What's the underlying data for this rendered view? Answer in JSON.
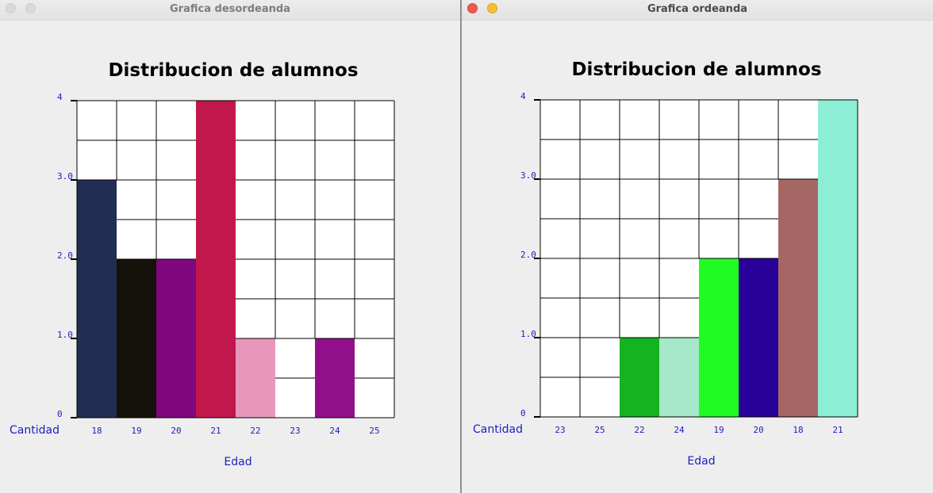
{
  "windows": [
    {
      "title": "Grafica desordeanda",
      "active": false,
      "chart_data": {
        "type": "bar",
        "title": "Distribucion de alumnos",
        "xlabel": "Edad",
        "ylabel": "Cantidad",
        "ylim": [
          0,
          4
        ],
        "y_ticks": [
          "0",
          "1.0",
          "2.0",
          "3.0",
          "4"
        ],
        "grid": true,
        "categories": [
          "18",
          "19",
          "20",
          "21",
          "22",
          "23",
          "24",
          "25"
        ],
        "values": [
          3,
          2,
          2,
          4,
          1,
          0,
          1,
          0
        ],
        "colors": [
          "#212e52",
          "#15120b",
          "#80077e",
          "#c2174c",
          "#e896ba",
          "#ffffff",
          "#920f8b",
          "#ffffff"
        ]
      }
    },
    {
      "title": "Grafica ordeanda",
      "active": true,
      "chart_data": {
        "type": "bar",
        "title": "Distribucion de alumnos",
        "xlabel": "Edad",
        "ylabel": "Cantidad",
        "ylim": [
          0,
          4
        ],
        "y_ticks": [
          "0",
          "1.0",
          "2.0",
          "3.0",
          "4"
        ],
        "grid": true,
        "categories": [
          "23",
          "25",
          "22",
          "24",
          "19",
          "20",
          "18",
          "21"
        ],
        "values": [
          0,
          0,
          1,
          1,
          2,
          2,
          3,
          4
        ],
        "colors": [
          "#ffffff",
          "#ffffff",
          "#13b420",
          "#a6e8c9",
          "#20fc22",
          "#29019a",
          "#a56764",
          "#8deed6"
        ]
      }
    }
  ]
}
